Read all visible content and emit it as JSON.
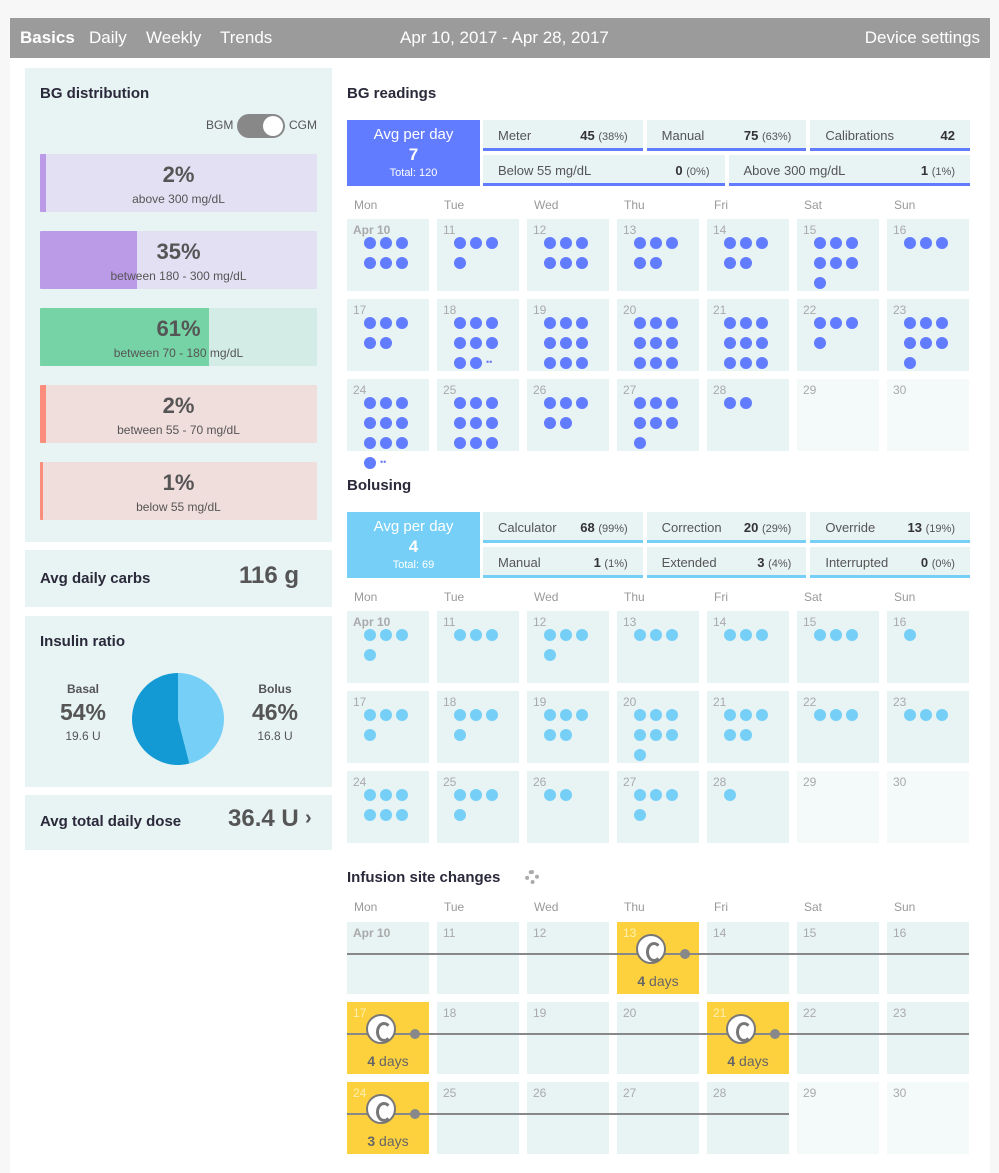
{
  "nav": {
    "tabs": [
      "Basics",
      "Daily",
      "Weekly",
      "Trends"
    ],
    "active": "Basics",
    "date_range": "Apr 10, 2017 - Apr 28, 2017",
    "device_settings": "Device settings"
  },
  "bg_distribution": {
    "title": "BG distribution",
    "toggle_left": "BGM",
    "toggle_right": "CGM",
    "bars": [
      {
        "pct": "2%",
        "range": "above 300 mg/dL",
        "fill": 0.02,
        "color": "#bb9ae7",
        "bg": "#e4e0f3"
      },
      {
        "pct": "35%",
        "range": "between 180 - 300 mg/dL",
        "fill": 0.35,
        "color": "#bb9ae7",
        "bg": "#e4e0f3"
      },
      {
        "pct": "61%",
        "range": "between 70 - 180 mg/dL",
        "fill": 0.61,
        "color": "#76d3a6",
        "bg": "#d3ede6"
      },
      {
        "pct": "2%",
        "range": "between 55 - 70 mg/dL",
        "fill": 0.02,
        "color": "#fb8d7c",
        "bg": "#f0dedd"
      },
      {
        "pct": "1%",
        "range": "below 55 mg/dL",
        "fill": 0.01,
        "color": "#fb8d7c",
        "bg": "#f0dedd"
      }
    ]
  },
  "carbs": {
    "label": "Avg daily carbs",
    "value": "116 g"
  },
  "insulin": {
    "title": "Insulin ratio",
    "basal_label": "Basal",
    "basal_pct": "54%",
    "basal_units": "19.6 U",
    "bolus_label": "Bolus",
    "bolus_pct": "46%",
    "bolus_units": "16.8 U",
    "basal_fraction": 0.54
  },
  "total_dose": {
    "label": "Avg total daily dose",
    "value": "36.4 U",
    "chevron": "›"
  },
  "dows": [
    "Mon",
    "Tue",
    "Wed",
    "Thu",
    "Fri",
    "Sat",
    "Sun"
  ],
  "bg_readings": {
    "title": "BG readings",
    "avg_label": "Avg per day",
    "avg_value": "7",
    "avg_total": "Total: 120",
    "color": "#627cff",
    "stats_row1": [
      {
        "label": "Meter",
        "value": "45",
        "pct": "(38%)"
      },
      {
        "label": "Manual",
        "value": "75",
        "pct": "(63%)"
      },
      {
        "label": "Calibrations",
        "value": "42",
        "pct": ""
      }
    ],
    "stats_row2": [
      {
        "label": "Below 55 mg/dL",
        "value": "0",
        "pct": "(0%)"
      },
      {
        "label": "Above 300 mg/dL",
        "value": "1",
        "pct": "(1%)"
      }
    ],
    "days": [
      {
        "label": "Apr 10",
        "n": 6
      },
      {
        "label": "11",
        "n": 4
      },
      {
        "label": "12",
        "n": 6
      },
      {
        "label": "13",
        "n": 5
      },
      {
        "label": "14",
        "n": 5
      },
      {
        "label": "15",
        "n": 7
      },
      {
        "label": "16",
        "n": 3
      },
      {
        "label": "17",
        "n": 5
      },
      {
        "label": "18",
        "n": 8,
        "extra": "••"
      },
      {
        "label": "19",
        "n": 9
      },
      {
        "label": "20",
        "n": 9
      },
      {
        "label": "21",
        "n": 9
      },
      {
        "label": "22",
        "n": 4
      },
      {
        "label": "23",
        "n": 7
      },
      {
        "label": "24",
        "n": 10,
        "extra": "••"
      },
      {
        "label": "25",
        "n": 9
      },
      {
        "label": "26",
        "n": 5
      },
      {
        "label": "27",
        "n": 7
      },
      {
        "label": "28",
        "n": 2
      },
      {
        "label": "29",
        "n": -1
      },
      {
        "label": "30",
        "n": -1
      }
    ]
  },
  "bolusing": {
    "title": "Bolusing",
    "avg_label": "Avg per day",
    "avg_value": "4",
    "avg_total": "Total: 69",
    "color": "#76cff6",
    "stats_row1": [
      {
        "label": "Calculator",
        "value": "68",
        "pct": "(99%)"
      },
      {
        "label": "Correction",
        "value": "20",
        "pct": "(29%)"
      },
      {
        "label": "Override",
        "value": "13",
        "pct": "(19%)"
      }
    ],
    "stats_row2": [
      {
        "label": "Manual",
        "value": "1",
        "pct": "(1%)"
      },
      {
        "label": "Extended",
        "value": "3",
        "pct": "(4%)"
      },
      {
        "label": "Interrupted",
        "value": "0",
        "pct": "(0%)"
      }
    ],
    "days": [
      {
        "label": "Apr 10",
        "n": 4
      },
      {
        "label": "11",
        "n": 3
      },
      {
        "label": "12",
        "n": 4
      },
      {
        "label": "13",
        "n": 3
      },
      {
        "label": "14",
        "n": 3
      },
      {
        "label": "15",
        "n": 3
      },
      {
        "label": "16",
        "n": 1
      },
      {
        "label": "17",
        "n": 4
      },
      {
        "label": "18",
        "n": 4
      },
      {
        "label": "19",
        "n": 5
      },
      {
        "label": "20",
        "n": 7
      },
      {
        "label": "21",
        "n": 5
      },
      {
        "label": "22",
        "n": 3
      },
      {
        "label": "23",
        "n": 3
      },
      {
        "label": "24",
        "n": 6
      },
      {
        "label": "25",
        "n": 4
      },
      {
        "label": "26",
        "n": 2
      },
      {
        "label": "27",
        "n": 4
      },
      {
        "label": "28",
        "n": 1
      },
      {
        "label": "29",
        "n": -1
      },
      {
        "label": "30",
        "n": -1
      }
    ]
  },
  "site_changes": {
    "title": "Infusion site changes",
    "days": [
      {
        "label": "Apr 10"
      },
      {
        "label": "11"
      },
      {
        "label": "12"
      },
      {
        "label": "13",
        "change": "4",
        "unit": "days"
      },
      {
        "label": "14"
      },
      {
        "label": "15"
      },
      {
        "label": "16"
      },
      {
        "label": "17",
        "change": "4",
        "unit": "days"
      },
      {
        "label": "18"
      },
      {
        "label": "19"
      },
      {
        "label": "20"
      },
      {
        "label": "21",
        "change": "4",
        "unit": "days"
      },
      {
        "label": "22"
      },
      {
        "label": "23"
      },
      {
        "label": "24",
        "change": "3",
        "unit": "days"
      },
      {
        "label": "25"
      },
      {
        "label": "26"
      },
      {
        "label": "27"
      },
      {
        "label": "28"
      },
      {
        "label": "29",
        "future": true
      },
      {
        "label": "30",
        "future": true
      }
    ]
  }
}
